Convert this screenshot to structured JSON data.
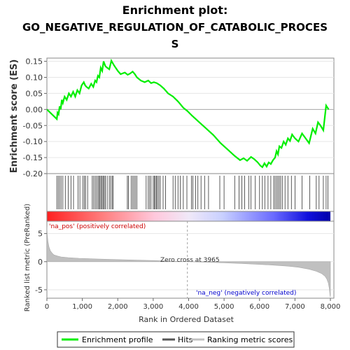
{
  "chart_data": {
    "type": "line",
    "title_line1": "Enrichment plot:",
    "title_line2": "GO_NEGATIVE_REGULATION_OF_CATABOLIC_PROCES",
    "title_line3": "S",
    "es_panel": {
      "ylabel": "Enrichment score (ES)",
      "ylim": [
        -0.2,
        0.16
      ],
      "yticks": [
        0.15,
        0.1,
        0.05,
        0.0,
        -0.05,
        -0.1,
        -0.15,
        -0.2
      ],
      "ytick_labels": [
        "0.15",
        "0.10",
        "0.05",
        "0.00",
        "-0.05",
        "-0.10",
        "-0.15",
        "-0.20"
      ],
      "line_color": "#00ee00",
      "series": [
        {
          "x": [
            0,
            280,
            300,
            330,
            360,
            390,
            420,
            450,
            500,
            560,
            620,
            680,
            740,
            800,
            860,
            920,
            980,
            1040,
            1080,
            1120,
            1180,
            1250,
            1310,
            1360,
            1400,
            1440,
            1480,
            1520,
            1560,
            1600,
            1650,
            1700,
            1760,
            1820,
            1880,
            1940,
            2000,
            2080,
            2200,
            2280,
            2350,
            2420,
            2480,
            2540,
            2650,
            2760,
            2860,
            2940,
            3020,
            3100,
            3200,
            3300,
            3420,
            3560,
            3700,
            3850,
            3965,
            4100,
            4300,
            4500,
            4700,
            4900,
            5100,
            5300,
            5450,
            5550,
            5650,
            5760,
            5850,
            5950,
            6020,
            6080,
            6140,
            6200,
            6260,
            6320,
            6380,
            6440,
            6480,
            6520,
            6560,
            6620,
            6680,
            6740,
            6800,
            6860,
            6920,
            7000,
            7100,
            7200,
            7300,
            7400,
            7500,
            7580,
            7650,
            7720,
            7800,
            7880,
            7950
          ],
          "y": [
            0.0,
            -0.03,
            -0.01,
            -0.015,
            0.01,
            0.0,
            0.03,
            0.02,
            0.04,
            0.03,
            0.05,
            0.04,
            0.055,
            0.04,
            0.06,
            0.05,
            0.075,
            0.085,
            0.075,
            0.07,
            0.065,
            0.08,
            0.07,
            0.09,
            0.085,
            0.105,
            0.1,
            0.13,
            0.12,
            0.15,
            0.135,
            0.13,
            0.125,
            0.152,
            0.14,
            0.13,
            0.12,
            0.11,
            0.115,
            0.108,
            0.112,
            0.118,
            0.11,
            0.1,
            0.09,
            0.085,
            0.09,
            0.082,
            0.085,
            0.082,
            0.075,
            0.065,
            0.05,
            0.04,
            0.025,
            0.005,
            -0.005,
            -0.02,
            -0.04,
            -0.06,
            -0.08,
            -0.105,
            -0.125,
            -0.145,
            -0.158,
            -0.152,
            -0.16,
            -0.148,
            -0.155,
            -0.165,
            -0.175,
            -0.18,
            -0.168,
            -0.178,
            -0.165,
            -0.17,
            -0.158,
            -0.15,
            -0.13,
            -0.14,
            -0.115,
            -0.12,
            -0.1,
            -0.11,
            -0.09,
            -0.098,
            -0.078,
            -0.09,
            -0.1,
            -0.075,
            -0.09,
            -0.105,
            -0.06,
            -0.075,
            -0.04,
            -0.05,
            -0.065,
            0.012,
            0.0
          ]
        }
      ]
    },
    "hits_panel": {
      "hit_ranks": [
        280,
        320,
        360,
        400,
        450,
        520,
        600,
        680,
        750,
        880,
        930,
        1020,
        1060,
        1090,
        1150,
        1280,
        1320,
        1360,
        1400,
        1440,
        1470,
        1500,
        1530,
        1560,
        1590,
        1620,
        1650,
        1700,
        1760,
        1800,
        1840,
        1870,
        2270,
        2300,
        2380,
        2420,
        2460,
        2500,
        2540,
        2800,
        2860,
        2900,
        2940,
        3000,
        3030,
        3060,
        3090,
        3120,
        3160,
        3200,
        3280,
        3350,
        3560,
        3620,
        3700,
        3760,
        3850,
        3950,
        4080,
        4120,
        4200,
        4260,
        4350,
        4450,
        4560,
        4880,
        5000,
        5300,
        5420,
        5500,
        5580,
        5700,
        5760,
        5880,
        6000,
        6080,
        6150,
        6240,
        6320,
        6400,
        6440,
        6480,
        6520,
        6560,
        6600,
        6650,
        6720,
        6800,
        6900,
        7000,
        7200,
        7420,
        7600,
        7680,
        7800,
        7880,
        7930
      ]
    },
    "metric_panel": {
      "ylabel": "Ranked list metric (PreRanked)",
      "xlabel": "Rank in Ordered Dataset",
      "xlim": [
        0,
        8000
      ],
      "xticks": [
        0,
        1000,
        2000,
        3000,
        4000,
        5000,
        6000,
        7000,
        8000
      ],
      "xtick_labels": [
        "0",
        "1,000",
        "2,000",
        "3,000",
        "4,000",
        "5,000",
        "6,000",
        "7,000",
        "8,000"
      ],
      "ylim": [
        -6.5,
        7.2
      ],
      "yticks": [
        5,
        0,
        -5
      ],
      "ytick_labels": [
        "5",
        "0",
        "-5"
      ],
      "zero_cross_label": "Zero cross at 3965",
      "zero_cross": 3965,
      "pos_label": "'na_pos' (positively correlated)",
      "neg_label": "'na_neg' (negatively correlated)",
      "profile": {
        "x": [
          0,
          10,
          30,
          60,
          100,
          150,
          200,
          300,
          400,
          600,
          900,
          1300,
          1800,
          2400,
          3000,
          3500,
          3965,
          4500,
          5000,
          5500,
          6000,
          6400,
          6800,
          7100,
          7400,
          7600,
          7750,
          7850,
          7900,
          7940,
          7970,
          7990,
          8000
        ],
        "y": [
          6.2,
          4.8,
          3.6,
          2.6,
          1.9,
          1.5,
          1.2,
          1.0,
          0.85,
          0.72,
          0.6,
          0.5,
          0.4,
          0.3,
          0.2,
          0.1,
          0.0,
          -0.1,
          -0.2,
          -0.32,
          -0.48,
          -0.62,
          -0.8,
          -1.0,
          -1.35,
          -1.7,
          -2.1,
          -2.6,
          -3.1,
          -3.8,
          -4.8,
          -6.0,
          -6.3
        ]
      }
    },
    "legend": {
      "placement": "bottom",
      "items": [
        {
          "label": "Enrichment profile",
          "color": "#00ee00"
        },
        {
          "label": "Hits",
          "color": "#555555"
        },
        {
          "label": "Ranking metric scores",
          "color": "#c0c0c0"
        }
      ]
    }
  }
}
